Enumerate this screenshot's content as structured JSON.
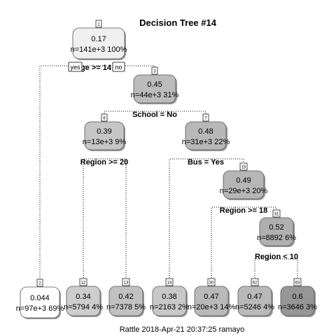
{
  "title": "Decision Tree #14",
  "footer": "Rattle 2018-Apr-21 20:37:25 ramayo",
  "root_split_yes_label": "yes",
  "root_split_no_label": "no",
  "nodes": [
    {
      "id": "1",
      "value": "0.17",
      "stats": "n=141e+3  100%",
      "fill": "#f0f0f0"
    },
    {
      "id": "3",
      "value": "0.45",
      "stats": "n=44e+3  31%",
      "fill": "#bcbcbc"
    },
    {
      "id": "6",
      "value": "0.39",
      "stats": "n=13e+3  9%",
      "fill": "#c6c6c6"
    },
    {
      "id": "7",
      "value": "0.48",
      "stats": "n=31e+3  22%",
      "fill": "#b8b8b8"
    },
    {
      "id": "15",
      "value": "0.49",
      "stats": "n=29e+3  20%",
      "fill": "#b6b6b6"
    },
    {
      "id": "31",
      "value": "0.52",
      "stats": "n=8892  6%",
      "fill": "#b0b0b0"
    },
    {
      "id": "2",
      "value": "0.044",
      "stats": "n=97e+3  69%",
      "fill": "#ffffff"
    },
    {
      "id": "12",
      "value": "0.34",
      "stats": "n=5794  4%",
      "fill": "#cdcdcd"
    },
    {
      "id": "13",
      "value": "0.42",
      "stats": "n=7378  5%",
      "fill": "#c1c1c1"
    },
    {
      "id": "14",
      "value": "0.38",
      "stats": "n=2163  2%",
      "fill": "#c8c8c8"
    },
    {
      "id": "30",
      "value": "0.47",
      "stats": "n=20e+3  14%",
      "fill": "#b9b9b9"
    },
    {
      "id": "62",
      "value": "0.47",
      "stats": "n=5246  4%",
      "fill": "#b9b9b9"
    },
    {
      "id": "63",
      "value": "0.6",
      "stats": "n=3646  3%",
      "fill": "#969696"
    }
  ],
  "splits": [
    {
      "id": "s1",
      "label": "Age >= 14"
    },
    {
      "id": "s3",
      "label": "School = No"
    },
    {
      "id": "s6",
      "label": "Region >= 20"
    },
    {
      "id": "s7",
      "label": "Bus = Yes"
    },
    {
      "id": "s15",
      "label": "Region >= 18"
    },
    {
      "id": "s31",
      "label": "Region < 10"
    }
  ]
}
